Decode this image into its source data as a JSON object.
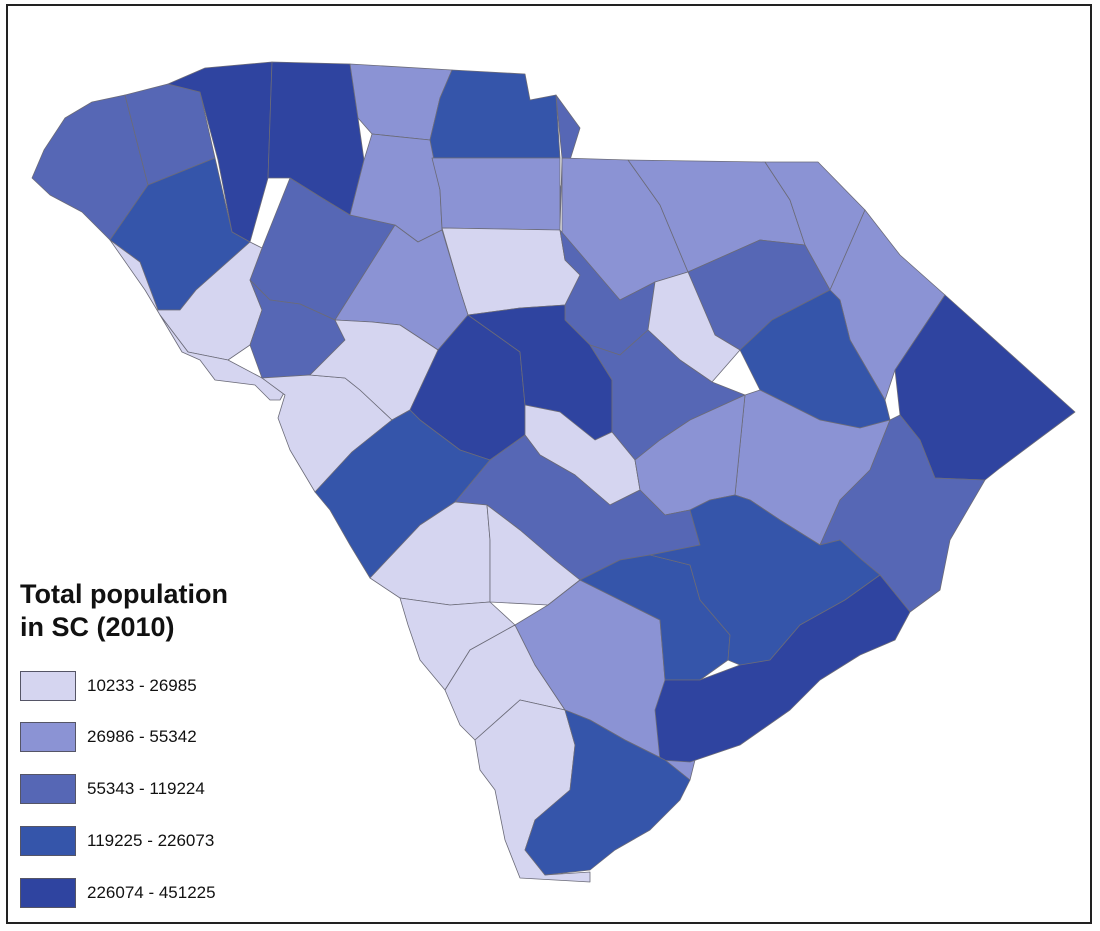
{
  "legend": {
    "title_line1": "Total population",
    "title_line2": "in SC (2010)",
    "classes": [
      {
        "label": "10233 - 26985",
        "color": "#d5d5f0"
      },
      {
        "label": "26986 - 55342",
        "color": "#8b93d4"
      },
      {
        "label": "55343 - 119224",
        "color": "#5667b5"
      },
      {
        "label": "119225 - 226073",
        "color": "#3555aa"
      },
      {
        "label": "226074 - 451225",
        "color": "#2f44a0"
      }
    ]
  },
  "map": {
    "region": "South Carolina",
    "counties": [
      {
        "id": "oconee",
        "cls": 2
      },
      {
        "id": "pickens",
        "cls": 2
      },
      {
        "id": "greenville",
        "cls": 4
      },
      {
        "id": "spartanburg",
        "cls": 4
      },
      {
        "id": "cherokee",
        "cls": 1
      },
      {
        "id": "york",
        "cls": 3
      },
      {
        "id": "lancaster",
        "cls": 2
      },
      {
        "id": "chesterfield",
        "cls": 1
      },
      {
        "id": "marlboro",
        "cls": 1
      },
      {
        "id": "dillon",
        "cls": 1
      },
      {
        "id": "anderson",
        "cls": 3
      },
      {
        "id": "laurens",
        "cls": 2
      },
      {
        "id": "union",
        "cls": 1
      },
      {
        "id": "chester",
        "cls": 1
      },
      {
        "id": "fairfield",
        "cls": 0
      },
      {
        "id": "kershaw",
        "cls": 2
      },
      {
        "id": "darlington",
        "cls": 2
      },
      {
        "id": "marion",
        "cls": 1
      },
      {
        "id": "horry",
        "cls": 4
      },
      {
        "id": "abbeville",
        "cls": 0
      },
      {
        "id": "greenwood",
        "cls": 2
      },
      {
        "id": "newberry",
        "cls": 1
      },
      {
        "id": "lee",
        "cls": 0
      },
      {
        "id": "florence",
        "cls": 3
      },
      {
        "id": "mccormick",
        "cls": 0
      },
      {
        "id": "edgefield",
        "cls": 0
      },
      {
        "id": "saluda",
        "cls": 0
      },
      {
        "id": "lexington",
        "cls": 4
      },
      {
        "id": "richland",
        "cls": 4
      },
      {
        "id": "sumter",
        "cls": 2
      },
      {
        "id": "williamsburg",
        "cls": 1
      },
      {
        "id": "georgetown",
        "cls": 2
      },
      {
        "id": "aiken",
        "cls": 3
      },
      {
        "id": "calhoun",
        "cls": 0
      },
      {
        "id": "clarendon",
        "cls": 1
      },
      {
        "id": "orangeburg",
        "cls": 2
      },
      {
        "id": "barnwell",
        "cls": 0
      },
      {
        "id": "bamberg",
        "cls": 0
      },
      {
        "id": "allendale",
        "cls": 0
      },
      {
        "id": "hampton",
        "cls": 0
      },
      {
        "id": "jasper",
        "cls": 0
      },
      {
        "id": "colleton",
        "cls": 1
      },
      {
        "id": "dorchester",
        "cls": 3
      },
      {
        "id": "berkeley",
        "cls": 3
      },
      {
        "id": "charleston",
        "cls": 4
      },
      {
        "id": "beaufort",
        "cls": 3
      }
    ]
  }
}
